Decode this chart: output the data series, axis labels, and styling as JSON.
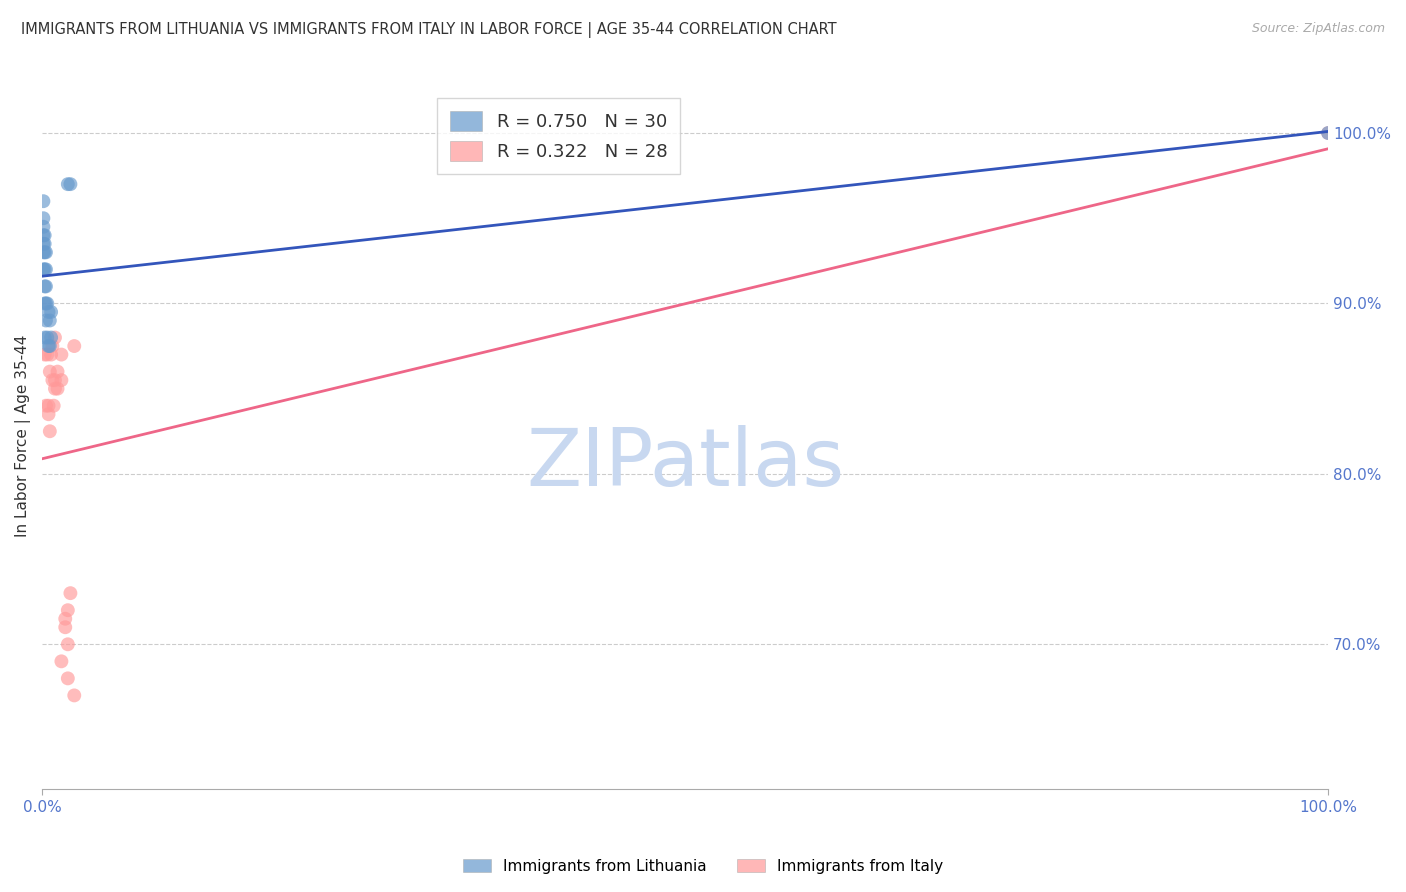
{
  "title": "IMMIGRANTS FROM LITHUANIA VS IMMIGRANTS FROM ITALY IN LABOR FORCE | AGE 35-44 CORRELATION CHART",
  "source": "Source: ZipAtlas.com",
  "ylabel": "In Labor Force | Age 35-44",
  "xmin": 0.0,
  "xmax": 1.0,
  "ymin": 0.615,
  "ymax": 1.03,
  "yticks": [
    0.7,
    0.8,
    0.9,
    1.0
  ],
  "ytick_labels": [
    "70.0%",
    "80.0%",
    "90.0%",
    "100.0%"
  ],
  "grid_color": "#cccccc",
  "background_color": "#ffffff",
  "watermark": "ZIPatlas",
  "watermark_color": "#c8d8f0",
  "legend_R1": "0.750",
  "legend_N1": "30",
  "legend_R2": "0.322",
  "legend_N2": "28",
  "blue_color": "#6699cc",
  "pink_color": "#ff9999",
  "blue_line_color": "#3355bb",
  "pink_line_color": "#ee6688",
  "title_color": "#333333",
  "axis_label_color": "#333333",
  "right_tick_color": "#5577cc",
  "bottom_tick_color": "#5577cc",
  "lithuania_x": [
    0.001,
    0.001,
    0.001,
    0.001,
    0.001,
    0.001,
    0.001,
    0.002,
    0.002,
    0.002,
    0.002,
    0.002,
    0.002,
    0.002,
    0.003,
    0.003,
    0.003,
    0.003,
    0.003,
    0.004,
    0.004,
    0.005,
    0.005,
    0.006,
    0.006,
    0.007,
    0.007,
    0.02,
    0.022,
    1.0
  ],
  "lithuania_y": [
    0.92,
    0.93,
    0.935,
    0.94,
    0.945,
    0.95,
    0.96,
    0.88,
    0.9,
    0.91,
    0.92,
    0.93,
    0.935,
    0.94,
    0.89,
    0.9,
    0.91,
    0.92,
    0.93,
    0.88,
    0.9,
    0.875,
    0.895,
    0.875,
    0.89,
    0.88,
    0.895,
    0.97,
    0.97,
    1.0
  ],
  "italy_x": [
    0.002,
    0.003,
    0.004,
    0.005,
    0.006,
    0.007,
    0.008,
    0.009,
    0.01,
    0.012,
    0.015,
    0.018,
    0.02,
    0.022,
    0.025,
    0.01,
    0.012,
    0.015,
    0.018,
    0.02,
    0.005,
    0.006,
    0.008,
    0.01,
    0.015,
    0.02,
    0.025,
    1.0
  ],
  "italy_y": [
    0.87,
    0.84,
    0.87,
    0.84,
    0.86,
    0.87,
    0.875,
    0.84,
    0.88,
    0.86,
    0.87,
    0.715,
    0.72,
    0.73,
    0.875,
    0.855,
    0.85,
    0.855,
    0.71,
    0.7,
    0.835,
    0.825,
    0.855,
    0.85,
    0.69,
    0.68,
    0.67,
    1.0
  ]
}
